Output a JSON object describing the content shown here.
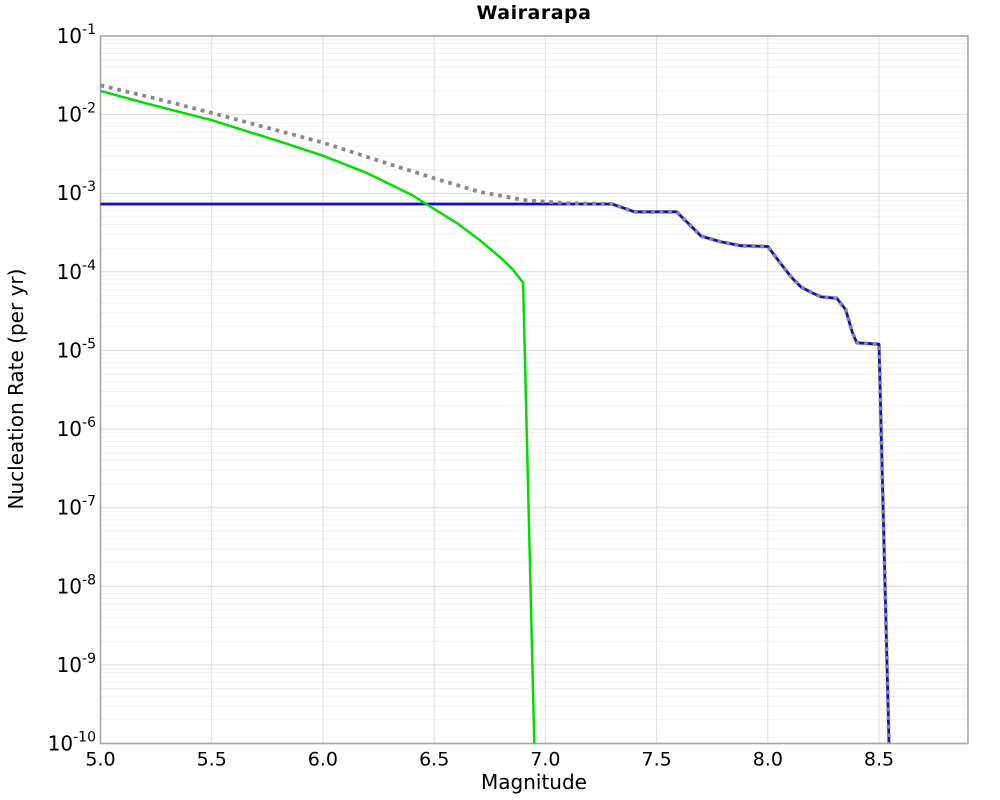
{
  "chart_data": {
    "type": "line",
    "title": "Wairarapa",
    "xlabel": "Magnitude",
    "ylabel": "Nucleation Rate (per yr)",
    "xlim": [
      5.0,
      8.9
    ],
    "ylim": [
      1e-10,
      0.1
    ],
    "x_scale": "linear",
    "y_scale": "log",
    "grid": true,
    "legend_position": "none",
    "x_ticks": [
      "5.0",
      "5.5",
      "6.0",
      "6.5",
      "7.0",
      "7.5",
      "8.0",
      "8.5"
    ],
    "x_tick_values": [
      5.0,
      5.5,
      6.0,
      6.5,
      7.0,
      7.5,
      8.0,
      8.5
    ],
    "y_tick_base": "10",
    "y_tick_exponents": [
      -1,
      -2,
      -3,
      -4,
      -5,
      -6,
      -7,
      -8,
      -9,
      -10
    ],
    "colors": {
      "grid_major": "#dedede",
      "grid_minor": "#f1f1f1",
      "border": "#a6a6a6",
      "title_text": "#000000",
      "blue_line": "#0d0dd6",
      "green_line": "#00dd00",
      "gray_dotted": "#8a8a8a"
    },
    "series": [
      {
        "id": "blue-solid-rate-curve",
        "color": "#0d0dd6",
        "style": "solid",
        "width": 2.8,
        "points": [
          [
            5.0,
            0.00073
          ],
          [
            7.3,
            0.00073
          ],
          [
            7.4,
            0.00058
          ],
          [
            7.59,
            0.00058
          ],
          [
            7.7,
            0.000285
          ],
          [
            7.79,
            0.00024
          ],
          [
            7.88,
            0.000215
          ],
          [
            8.0,
            0.00021
          ],
          [
            8.07,
            0.000115
          ],
          [
            8.11,
            8.3e-05
          ],
          [
            8.15,
            6.4e-05
          ],
          [
            8.2,
            5.4e-05
          ],
          [
            8.24,
            4.8e-05
          ],
          [
            8.31,
            4.6e-05
          ],
          [
            8.35,
            3.3e-05
          ],
          [
            8.38,
            1.7e-05
          ],
          [
            8.4,
            1.25e-05
          ],
          [
            8.5,
            1.2e-05
          ],
          [
            8.545,
            1e-10
          ]
        ]
      },
      {
        "id": "green-solid-rate-curve",
        "color": "#00dd00",
        "style": "solid",
        "width": 2.5,
        "points": [
          [
            5.0,
            0.02
          ],
          [
            5.2,
            0.014
          ],
          [
            5.5,
            0.0085
          ],
          [
            5.8,
            0.0046
          ],
          [
            6.0,
            0.003
          ],
          [
            6.2,
            0.0018
          ],
          [
            6.4,
            0.00095
          ],
          [
            6.5,
            0.00063
          ],
          [
            6.6,
            0.00042
          ],
          [
            6.7,
            0.00026
          ],
          [
            6.8,
            0.00015
          ],
          [
            6.85,
            0.00011
          ],
          [
            6.9,
            7.3e-05
          ],
          [
            6.95,
            1e-10
          ]
        ]
      },
      {
        "id": "gray-dotted-rate-curve",
        "color": "#8a8a8a",
        "style": "dotted",
        "width": 3.8,
        "dash": "3.8 4.8",
        "points": [
          [
            5.0,
            0.0235
          ],
          [
            5.25,
            0.016
          ],
          [
            5.5,
            0.0105
          ],
          [
            5.75,
            0.0068
          ],
          [
            6.0,
            0.0044
          ],
          [
            6.25,
            0.0026
          ],
          [
            6.5,
            0.00155
          ],
          [
            6.7,
            0.00105
          ],
          [
            6.9,
            0.00082
          ],
          [
            7.1,
            0.000745
          ],
          [
            7.3,
            0.00073
          ],
          [
            7.4,
            0.00058
          ],
          [
            7.59,
            0.00058
          ],
          [
            7.7,
            0.000285
          ],
          [
            7.79,
            0.00024
          ],
          [
            7.88,
            0.000215
          ],
          [
            8.0,
            0.00021
          ],
          [
            8.07,
            0.000115
          ],
          [
            8.11,
            8.3e-05
          ],
          [
            8.15,
            6.4e-05
          ],
          [
            8.2,
            5.4e-05
          ],
          [
            8.24,
            4.8e-05
          ],
          [
            8.31,
            4.6e-05
          ],
          [
            8.35,
            3.3e-05
          ],
          [
            8.38,
            1.7e-05
          ],
          [
            8.4,
            1.25e-05
          ],
          [
            8.5,
            1.2e-05
          ],
          [
            8.545,
            1e-10
          ]
        ]
      }
    ]
  }
}
